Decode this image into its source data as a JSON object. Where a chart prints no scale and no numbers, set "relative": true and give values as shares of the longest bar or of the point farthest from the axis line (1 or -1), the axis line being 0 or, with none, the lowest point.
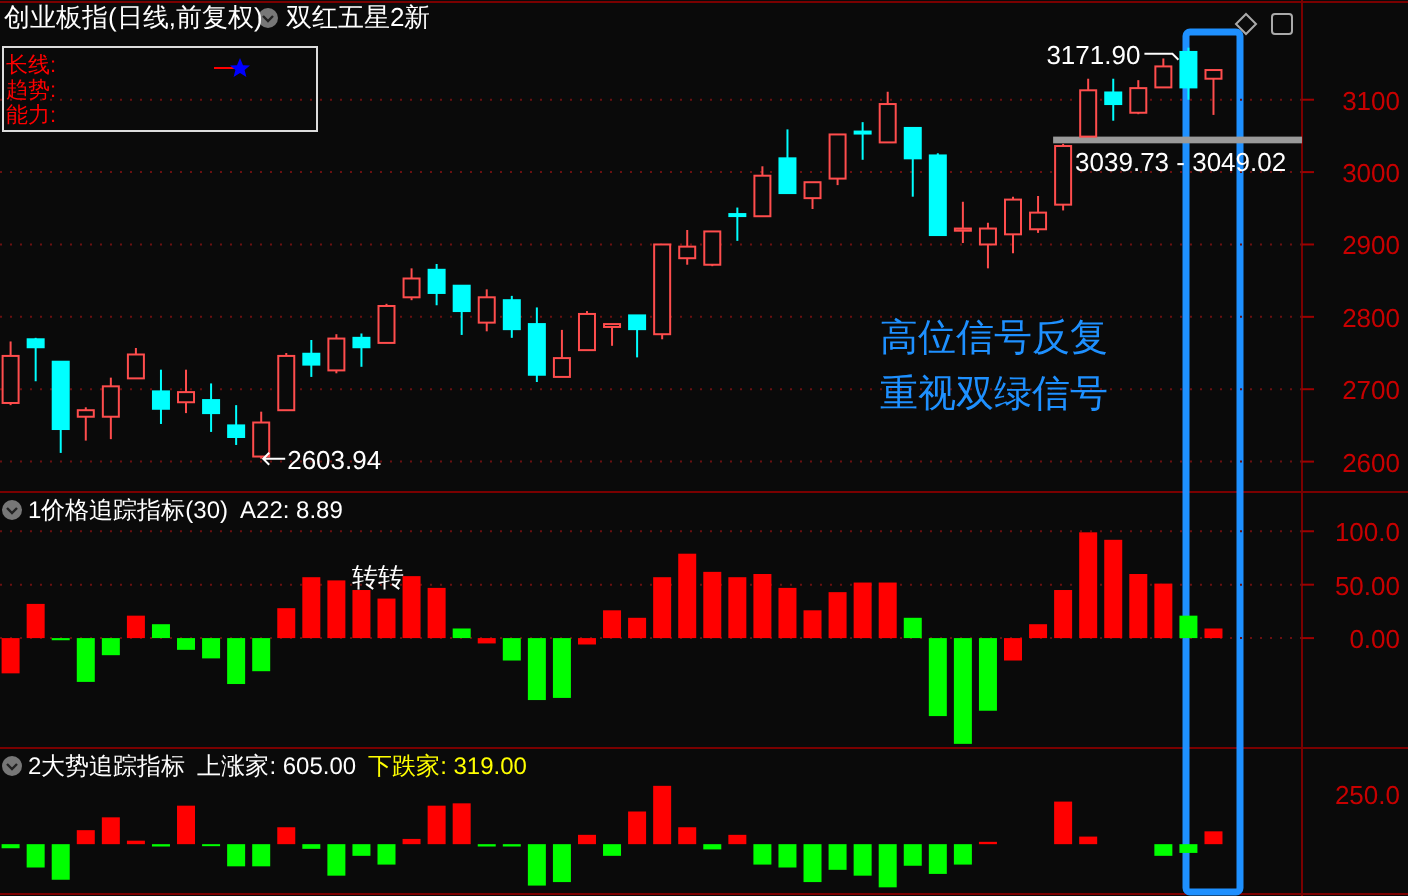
{
  "chart_data": [
    {
      "type": "candlestick",
      "title": "创业板指(日线,前复权)",
      "subtitle": "双红五星2新",
      "categories": [
        null,
        null,
        null,
        null,
        null,
        null,
        null,
        null,
        null,
        null,
        null,
        null,
        null,
        null,
        null,
        null,
        null,
        null,
        null,
        null,
        null,
        null,
        null,
        null,
        null,
        null,
        null,
        null,
        null,
        null,
        null,
        null,
        null,
        null,
        null,
        null,
        null,
        null,
        null,
        null,
        null,
        null,
        null,
        null,
        null,
        null,
        null,
        null,
        null
      ],
      "ohlc": [
        [
          2681,
          2766,
          2678,
          2746
        ],
        [
          2769,
          2771,
          2711,
          2758
        ],
        [
          2738,
          2738,
          2612,
          2645
        ],
        [
          2662,
          2675,
          2629,
          2671
        ],
        [
          2662,
          2716,
          2631,
          2704
        ],
        [
          2715,
          2757,
          2715,
          2748
        ],
        [
          2697,
          2727,
          2652,
          2673
        ],
        [
          2682,
          2727,
          2667,
          2696
        ],
        [
          2685,
          2708,
          2641,
          2667
        ],
        [
          2650,
          2678,
          2623,
          2634
        ],
        [
          2607,
          2669,
          2603.94,
          2654
        ],
        [
          2671,
          2750,
          2671,
          2746
        ],
        [
          2749,
          2768,
          2717,
          2734
        ],
        [
          2726,
          2776,
          2722,
          2770
        ],
        [
          2771,
          2777,
          2731,
          2758
        ],
        [
          2764,
          2818,
          2764,
          2815
        ],
        [
          2827,
          2867,
          2823,
          2853
        ],
        [
          2865,
          2873,
          2816,
          2833
        ],
        [
          2843,
          2843,
          2775,
          2808
        ],
        [
          2792,
          2838,
          2780,
          2827
        ],
        [
          2823,
          2829,
          2771,
          2783
        ],
        [
          2790,
          2813,
          2710,
          2720
        ],
        [
          2717,
          2782,
          2717,
          2743
        ],
        [
          2754,
          2808,
          2754,
          2804
        ],
        [
          2786,
          2790,
          2760,
          2790
        ],
        [
          2802,
          2802,
          2744,
          2783
        ],
        [
          2776,
          2900,
          2769,
          2900
        ],
        [
          2881,
          2920,
          2872,
          2897
        ],
        [
          2872,
          2918,
          2870,
          2918
        ],
        [
          2942,
          2951,
          2905,
          2940
        ],
        [
          2939,
          3008,
          2939,
          2995
        ],
        [
          3019,
          3059,
          2971,
          2971
        ],
        [
          2964,
          2986,
          2949,
          2986
        ],
        [
          2991,
          3052,
          2982,
          3052
        ],
        [
          3056,
          3069,
          3017,
          3054
        ],
        [
          3041,
          3111,
          3041,
          3094
        ],
        [
          3061,
          3061,
          2966,
          3019
        ],
        [
          3023,
          3026,
          2913,
          2913
        ],
        [
          2919,
          2959,
          2902,
          2922
        ],
        [
          2900,
          2930,
          2867,
          2922
        ],
        [
          2914,
          2966,
          2888,
          2962
        ],
        [
          2921,
          2967,
          2916,
          2944
        ],
        [
          2955,
          3039,
          2947,
          3036
        ],
        [
          3049,
          3129,
          3049,
          3113
        ],
        [
          3110,
          3129,
          3071,
          3094
        ],
        [
          3082,
          3127,
          3080,
          3116
        ],
        [
          3117,
          3157,
          3117,
          3146
        ],
        [
          3166,
          3171.9,
          3100,
          3117
        ],
        [
          3129,
          3141,
          3079,
          3141
        ]
      ],
      "colors": [
        "#ff4d4d",
        "#00ffff",
        "#00ffff",
        "#ff4d4d",
        "#ff4d4d",
        "#ff4d4d",
        "#00ffff",
        "#ff4d4d",
        "#00ffff",
        "#00ffff",
        "#ff4d4d",
        "#ff4d4d",
        "#00ffff",
        "#ff4d4d",
        "#00ffff",
        "#ff4d4d",
        "#ff4d4d",
        "#00ffff",
        "#00ffff",
        "#ff4d4d",
        "#00ffff",
        "#00ffff",
        "#ff4d4d",
        "#ff4d4d",
        "#ff4d4d",
        "#00ffff",
        "#ff4d4d",
        "#ff4d4d",
        "#ff4d4d",
        "#00ffff",
        "#ff4d4d",
        "#00ffff",
        "#ff4d4d",
        "#ff4d4d",
        "#00ffff",
        "#ff4d4d",
        "#00ffff",
        "#00ffff",
        "#ff4d4d",
        "#ff4d4d",
        "#ff4d4d",
        "#ff4d4d",
        "#ff4d4d",
        "#ff4d4d",
        "#00ffff",
        "#ff4d4d",
        "#ff4d4d",
        "#00ffff",
        "#ff4d4d"
      ],
      "ylim": [
        2558,
        3235
      ],
      "yticks": [
        2600,
        2700,
        2800,
        2900,
        3000,
        3100
      ],
      "grid": "y",
      "tick_labels": "y",
      "bands": [
        {
          "axis": "y",
          "from": 3039.73,
          "to": 3049.02,
          "label": "3039.73 - 3049.02",
          "color": "#9a9a9a"
        }
      ],
      "annotations": [
        "2603.94",
        "3171.90",
        "高位信号反复",
        "重视双绿信号",
        "长线:",
        "趋势:",
        "能力:"
      ]
    },
    {
      "type": "bar",
      "title": "1价格追踪指标(30)",
      "subtitle": "A22: 8.89",
      "categories": [
        null,
        null,
        null,
        null,
        null,
        null,
        null,
        null,
        null,
        null,
        null,
        null,
        null,
        null,
        null,
        null,
        null,
        null,
        null,
        null,
        null,
        null,
        null,
        null,
        null,
        null,
        null,
        null,
        null,
        null,
        null,
        null,
        null,
        null,
        null,
        null,
        null,
        null,
        null,
        null,
        null,
        null,
        null,
        null,
        null,
        null,
        null,
        null,
        null
      ],
      "values": [
        -33,
        32,
        -2,
        -41,
        -16,
        21,
        13,
        -11,
        -19,
        -43,
        -31,
        28,
        57,
        54,
        45,
        37,
        58,
        47,
        9,
        -5,
        -21,
        -58,
        -56,
        -6,
        26,
        19,
        57,
        79,
        62,
        57,
        60,
        47,
        26,
        43,
        52,
        52,
        19,
        -73,
        -99,
        -68,
        -21,
        13,
        45,
        99,
        92,
        60,
        51,
        21,
        9
      ],
      "colors": [
        "#ff0000",
        "#ff0000",
        "#00ff00",
        "#00ff00",
        "#00ff00",
        "#ff0000",
        "#00ff00",
        "#00ff00",
        "#00ff00",
        "#00ff00",
        "#00ff00",
        "#ff0000",
        "#ff0000",
        "#ff0000",
        "#ff0000",
        "#ff0000",
        "#ff0000",
        "#ff0000",
        "#00ff00",
        "#ff0000",
        "#00ff00",
        "#00ff00",
        "#00ff00",
        "#ff0000",
        "#ff0000",
        "#ff0000",
        "#ff0000",
        "#ff0000",
        "#ff0000",
        "#ff0000",
        "#ff0000",
        "#ff0000",
        "#ff0000",
        "#ff0000",
        "#ff0000",
        "#ff0000",
        "#00ff00",
        "#00ff00",
        "#00ff00",
        "#00ff00",
        "#ff0000",
        "#ff0000",
        "#ff0000",
        "#ff0000",
        "#ff0000",
        "#ff0000",
        "#ff0000",
        "#00ff00",
        "#ff0000"
      ],
      "ylim": [
        -101,
        133
      ],
      "yticks": [
        {
          "value": 0,
          "label": "0.00"
        },
        {
          "value": 50,
          "label": "50.00"
        },
        {
          "value": 100,
          "label": "100.0"
        }
      ],
      "grid": "y",
      "tick_labels": "y",
      "annotations": [
        "转转"
      ]
    },
    {
      "type": "bar",
      "relative": true,
      "title": "2大势追踪指标",
      "subtitle": "上涨家: 605.00",
      "categories": [
        null,
        null,
        null,
        null,
        null,
        null,
        null,
        null,
        null,
        null,
        null,
        null,
        null,
        null,
        null,
        null,
        null,
        null,
        null,
        null,
        null,
        null,
        null,
        null,
        null,
        null,
        null,
        null,
        null,
        null,
        null,
        null,
        null,
        null,
        null,
        null,
        null,
        null,
        null,
        null,
        null,
        null,
        null,
        null,
        null,
        null,
        null,
        null,
        null
      ],
      "values": [
        -0.07,
        -0.4,
        -0.61,
        0.24,
        0.46,
        0.06,
        -0.04,
        0.66,
        -0.02,
        -0.38,
        -0.38,
        0.29,
        -0.08,
        -0.54,
        -0.2,
        -0.35,
        0.09,
        0.66,
        0.7,
        -0.04,
        -0.04,
        -0.71,
        -0.65,
        0.16,
        -0.2,
        0.56,
        1,
        0.29,
        -0.09,
        0.16,
        -0.35,
        -0.4,
        -0.65,
        -0.44,
        -0.54,
        -0.74,
        -0.37,
        -0.51,
        -0.35,
        0.04,
        null,
        null,
        0.73,
        0.13,
        null,
        null,
        -0.2,
        -0.15,
        0.22
      ],
      "colors": [
        "#00ff00",
        "#00ff00",
        "#00ff00",
        "#ff0000",
        "#ff0000",
        "#ff0000",
        "#00ff00",
        "#ff0000",
        "#00ff00",
        "#00ff00",
        "#00ff00",
        "#ff0000",
        "#00ff00",
        "#00ff00",
        "#00ff00",
        "#00ff00",
        "#ff0000",
        "#ff0000",
        "#ff0000",
        "#00ff00",
        "#00ff00",
        "#00ff00",
        "#00ff00",
        "#ff0000",
        "#00ff00",
        "#ff0000",
        "#ff0000",
        "#ff0000",
        "#00ff00",
        "#ff0000",
        "#00ff00",
        "#00ff00",
        "#00ff00",
        "#00ff00",
        "#00ff00",
        "#00ff00",
        "#00ff00",
        "#00ff00",
        "#00ff00",
        "#ff0000",
        null,
        null,
        "#ff0000",
        "#ff0000",
        null,
        null,
        "#00ff00",
        "#00ff00",
        "#ff0000"
      ],
      "annotations": [
        "下跌家: 319.00",
        "250.0"
      ]
    }
  ]
}
